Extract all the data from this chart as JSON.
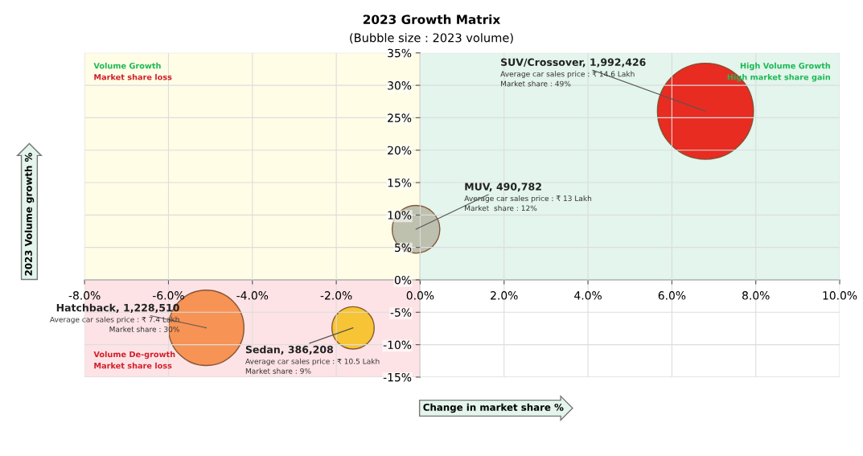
{
  "chart_data": {
    "type": "bubble",
    "title": "2023 Growth Matrix",
    "subtitle": "(Bubble size : 2023 volume)",
    "xlabel": "Change in market share %",
    "ylabel": "2023 Volume growth %",
    "series": [
      {
        "x": [
          6.8,
          -0.1,
          -5.1,
          -1.6
        ],
        "values": [
          26,
          7.8,
          -7.4,
          -7.4
        ],
        "sizes": [
          1,
          0.246,
          0.617,
          0.194
        ],
        "colors": [
          "#e8160c",
          "#b8baa8",
          "#f58a45",
          "#f5c020"
        ]
      }
    ],
    "xlim": [
      -8,
      10
    ],
    "ylim": [
      -15,
      35
    ],
    "xticks": [
      {
        "value": -8,
        "label": "-8.0%"
      },
      {
        "value": -6,
        "label": "-6.0%"
      },
      {
        "value": -4,
        "label": "-4.0%"
      },
      {
        "value": -2,
        "label": "-2.0%"
      },
      {
        "value": 0,
        "label": "0.0%"
      },
      {
        "value": 2,
        "label": "2.0%"
      },
      {
        "value": 4,
        "label": "4.0%"
      },
      {
        "value": 6,
        "label": "6.0%"
      },
      {
        "value": 8,
        "label": "8.0%"
      },
      {
        "value": 10,
        "label": "10.0%"
      }
    ],
    "yticks": [
      {
        "value": -15,
        "label": "-15%"
      },
      {
        "value": -10,
        "label": "-10%"
      },
      {
        "value": -5,
        "label": "-5%"
      },
      {
        "value": 0,
        "label": "0%"
      },
      {
        "value": 5,
        "label": "5%"
      },
      {
        "value": 10,
        "label": "10%"
      },
      {
        "value": 15,
        "label": "15%"
      },
      {
        "value": 20,
        "label": "20%"
      },
      {
        "value": 25,
        "label": "25%"
      },
      {
        "value": 30,
        "label": "30%"
      },
      {
        "value": 35,
        "label": "35%"
      }
    ],
    "grid": true,
    "annotations": [
      {
        "text": "SUV/Crossover, 1,992,426\nAverage car sales price : ₹ 14.6 Lakh\nMarket share : 49%",
        "x": 6.8,
        "y": 26
      },
      {
        "text": "MUV, 490,782\nAverage car sales price : ₹ 13 Lakh\nMarket  share : 12%",
        "x": -0.1,
        "y": 7.8
      },
      {
        "text": "Hatchback, 1,228,510\nAverage car sales price : ₹ 7.4 Lakh\nMarket share : 30%",
        "x": -5.1,
        "y": -7.4
      },
      {
        "text": "Sedan, 386,208\nAverage car sales price : ₹ 10.5 Lakh\nMarket share : 9%",
        "x": -1.6,
        "y": -7.4
      },
      "Volume Growth",
      "Market share loss",
      "High Volume Growth",
      "High market share gain",
      "Volume De-growth",
      "Market share loss"
    ]
  }
}
